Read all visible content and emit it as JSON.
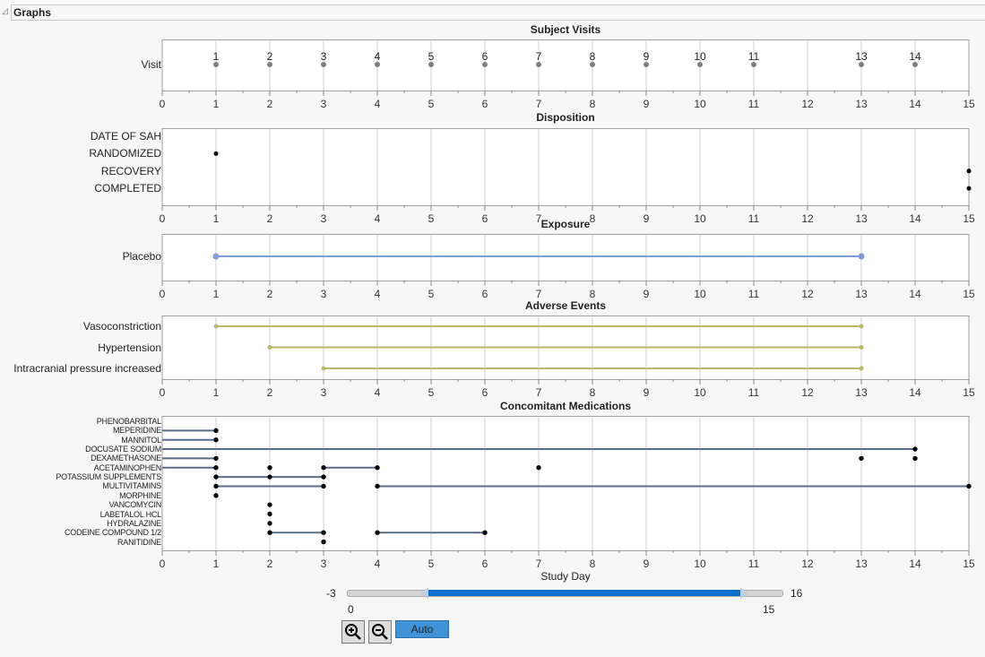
{
  "header": {
    "title": "Graphs"
  },
  "x_axis": {
    "ticks": [
      0,
      1,
      2,
      3,
      4,
      5,
      6,
      7,
      8,
      9,
      10,
      11,
      12,
      13,
      14,
      15
    ],
    "min": 0,
    "max": 15,
    "label": "Study Day"
  },
  "colors": {
    "visit": "#808080",
    "marker": "#000000",
    "exposure": "#7f9ed8",
    "ae": "#b9b96a",
    "cm": "#5b6b8c",
    "grid": "#d0d0d0"
  },
  "panels": [
    {
      "key": "visits",
      "title": "Subject Visits",
      "rows": [
        "Visit"
      ],
      "segments": [],
      "points": [
        {
          "row": 0,
          "x": 1,
          "label": "1"
        },
        {
          "row": 0,
          "x": 2,
          "label": "2"
        },
        {
          "row": 0,
          "x": 3,
          "label": "3"
        },
        {
          "row": 0,
          "x": 4,
          "label": "4"
        },
        {
          "row": 0,
          "x": 5,
          "label": "5"
        },
        {
          "row": 0,
          "x": 6,
          "label": "6"
        },
        {
          "row": 0,
          "x": 7,
          "label": "7"
        },
        {
          "row": 0,
          "x": 8,
          "label": "8"
        },
        {
          "row": 0,
          "x": 9,
          "label": "9"
        },
        {
          "row": 0,
          "x": 10,
          "label": "10"
        },
        {
          "row": 0,
          "x": 11,
          "label": "11"
        },
        {
          "row": 0,
          "x": 13,
          "label": "13"
        },
        {
          "row": 0,
          "x": 14,
          "label": "14"
        }
      ]
    },
    {
      "key": "disp",
      "title": "Disposition",
      "rows": [
        "DATE OF SAH",
        "RANDOMIZED",
        "RECOVERY",
        "COMPLETED"
      ],
      "segments": [],
      "points": [
        {
          "row": 1,
          "x": 1
        },
        {
          "row": 2,
          "x": 15
        },
        {
          "row": 3,
          "x": 15
        }
      ]
    },
    {
      "key": "exp",
      "title": "Exposure",
      "rows": [
        "Placebo"
      ],
      "segments": [
        {
          "row": 0,
          "from": 1,
          "to": 13
        }
      ],
      "points": [
        {
          "row": 0,
          "x": 1
        },
        {
          "row": 0,
          "x": 13
        }
      ]
    },
    {
      "key": "ae",
      "title": "Adverse Events",
      "rows": [
        "Vasoconstriction",
        "Hypertension",
        "Intracranial pressure increased"
      ],
      "segments": [
        {
          "row": 0,
          "from": 1,
          "to": 13
        },
        {
          "row": 1,
          "from": 2,
          "to": 13
        },
        {
          "row": 2,
          "from": 3,
          "to": 13
        }
      ],
      "points": [
        {
          "row": 0,
          "x": 1
        },
        {
          "row": 0,
          "x": 13
        },
        {
          "row": 1,
          "x": 2
        },
        {
          "row": 1,
          "x": 13
        },
        {
          "row": 2,
          "x": 3
        },
        {
          "row": 2,
          "x": 13
        }
      ]
    },
    {
      "key": "cm",
      "title": "Concomitant Medications",
      "rows": [
        "PHENOBARBITAL",
        "MEPERIDINE",
        "MANNITOL",
        "DOCUSATE SODIUM",
        "DEXAMETHASONE",
        "ACETAMINOPHEN",
        "POTASSIUM SUPPLEMENTS",
        "MULTIVITAMINS",
        "MORPHINE",
        "VANCOMYCIN",
        "LABETALOL HCL",
        "HYDRALAZINE",
        "CODEINE COMPOUND 1/2",
        "RANITIDINE"
      ],
      "segments": [
        {
          "row": 1,
          "from": 0,
          "to": 1
        },
        {
          "row": 2,
          "from": 0,
          "to": 1
        },
        {
          "row": 3,
          "from": 0,
          "to": 14
        },
        {
          "row": 4,
          "from": 0,
          "to": 1
        },
        {
          "row": 5,
          "from": 0,
          "to": 1
        },
        {
          "row": 5,
          "from": 3,
          "to": 4
        },
        {
          "row": 6,
          "from": 1,
          "to": 3
        },
        {
          "row": 7,
          "from": 1,
          "to": 3
        },
        {
          "row": 7,
          "from": 4,
          "to": 15
        },
        {
          "row": 12,
          "from": 2,
          "to": 3
        },
        {
          "row": 12,
          "from": 4,
          "to": 6
        }
      ],
      "points": [
        {
          "row": 1,
          "x": 1
        },
        {
          "row": 2,
          "x": 1
        },
        {
          "row": 3,
          "x": 14
        },
        {
          "row": 4,
          "x": 1
        },
        {
          "row": 4,
          "x": 13
        },
        {
          "row": 4,
          "x": 14
        },
        {
          "row": 5,
          "x": 1
        },
        {
          "row": 5,
          "x": 2
        },
        {
          "row": 5,
          "x": 3
        },
        {
          "row": 5,
          "x": 4
        },
        {
          "row": 5,
          "x": 7
        },
        {
          "row": 6,
          "x": 1
        },
        {
          "row": 6,
          "x": 2
        },
        {
          "row": 6,
          "x": 3
        },
        {
          "row": 7,
          "x": 1
        },
        {
          "row": 7,
          "x": 3
        },
        {
          "row": 7,
          "x": 4
        },
        {
          "row": 7,
          "x": 15
        },
        {
          "row": 8,
          "x": 1
        },
        {
          "row": 9,
          "x": 2
        },
        {
          "row": 10,
          "x": 2
        },
        {
          "row": 11,
          "x": 2
        },
        {
          "row": 12,
          "x": 2
        },
        {
          "row": 12,
          "x": 3
        },
        {
          "row": 12,
          "x": 4
        },
        {
          "row": 12,
          "x": 6
        },
        {
          "row": 13,
          "x": 3
        }
      ]
    }
  ],
  "slider": {
    "min_label": "-3",
    "max_label": "16",
    "low_label": "0",
    "high_label": "15",
    "low": 0,
    "high": 15
  },
  "controls": {
    "zoom_in": "zoom-in",
    "zoom_out": "zoom-out",
    "auto_label": "Auto"
  }
}
